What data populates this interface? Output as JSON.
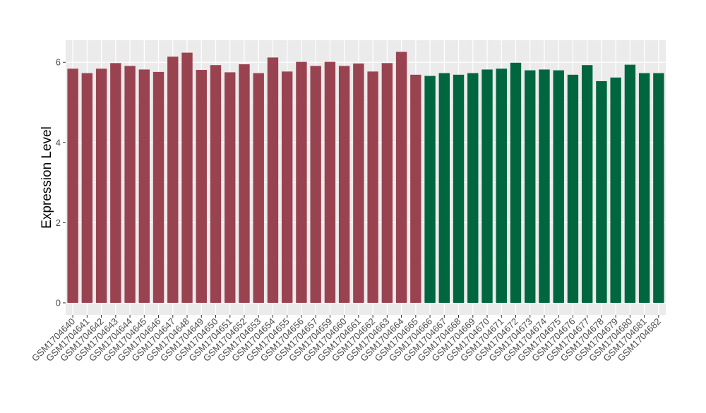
{
  "chart_data": {
    "type": "bar",
    "xlabel": "",
    "ylabel": "Expression Level",
    "ylim": [
      -0.3,
      6.55
    ],
    "y_ticks": [
      0,
      2,
      4,
      6
    ],
    "grid": true,
    "legend": "none",
    "colors": {
      "group_a": "#9a4350",
      "group_b": "#00663f",
      "panel_bg": "#ebebeb",
      "grid": "#ffffff",
      "axis_text": "#4d4d4d",
      "title_text": "#000000"
    },
    "categories": [
      "GSM1704640",
      "GSM1704641",
      "GSM1704642",
      "GSM1704643",
      "GSM1704644",
      "GSM1704645",
      "GSM1704646",
      "GSM1704647",
      "GSM1704648",
      "GSM1704649",
      "GSM1704650",
      "GSM1704651",
      "GSM1704652",
      "GSM1704653",
      "GSM1704654",
      "GSM1704655",
      "GSM1704656",
      "GSM1704657",
      "GSM1704659",
      "GSM1704660",
      "GSM1704661",
      "GSM1704662",
      "GSM1704663",
      "GSM1704664",
      "GSM1704665",
      "GSM1704666",
      "GSM1704667",
      "GSM1704668",
      "GSM1704669",
      "GSM1704670",
      "GSM1704671",
      "GSM1704672",
      "GSM1704673",
      "GSM1704674",
      "GSM1704675",
      "GSM1704676",
      "GSM1704677",
      "GSM1704678",
      "GSM1704679",
      "GSM1704680",
      "GSM1704681",
      "GSM1704682"
    ],
    "values": [
      5.84,
      5.73,
      5.84,
      5.98,
      5.91,
      5.82,
      5.76,
      6.14,
      6.24,
      5.81,
      5.93,
      5.75,
      5.95,
      5.73,
      6.12,
      5.77,
      6.01,
      5.91,
      6.01,
      5.91,
      5.97,
      5.77,
      5.98,
      6.26,
      5.69,
      5.66,
      5.73,
      5.69,
      5.73,
      5.82,
      5.84,
      5.99,
      5.8,
      5.82,
      5.8,
      5.69,
      5.93,
      5.53,
      5.62,
      5.94,
      5.73,
      5.73
    ],
    "groups": [
      "a",
      "a",
      "a",
      "a",
      "a",
      "a",
      "a",
      "a",
      "a",
      "a",
      "a",
      "a",
      "a",
      "a",
      "a",
      "a",
      "a",
      "a",
      "a",
      "a",
      "a",
      "a",
      "a",
      "a",
      "a",
      "b",
      "b",
      "b",
      "b",
      "b",
      "b",
      "b",
      "b",
      "b",
      "b",
      "b",
      "b",
      "b",
      "b",
      "b",
      "b",
      "b"
    ]
  }
}
